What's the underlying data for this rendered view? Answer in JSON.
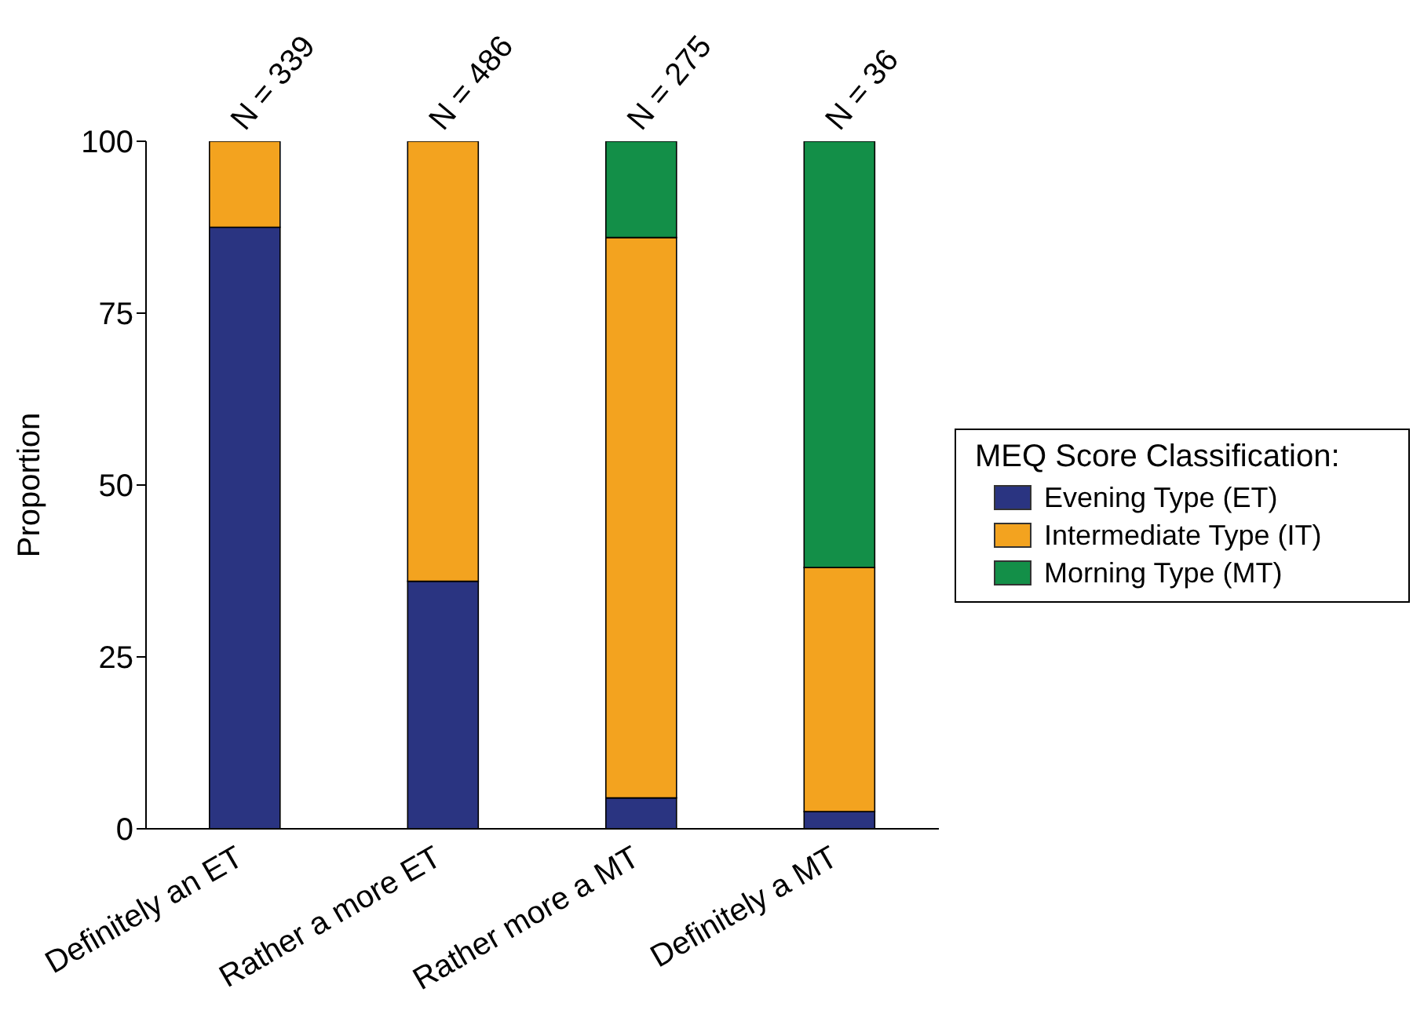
{
  "chart_data": {
    "type": "bar",
    "stacked": true,
    "ylabel": "Proportion",
    "legend_title": "MEQ Score Classification:",
    "legend": "right",
    "grid": false,
    "categories": [
      "Definitely an ET",
      "Rather a more ET",
      "Rather more a MT",
      "Definitely a MT"
    ],
    "series": [
      {
        "name": "Evening Type (ET)",
        "color": "#2a3481",
        "values": [
          87.5,
          36,
          4.5,
          2.5
        ]
      },
      {
        "name": "Intermediate Type (IT)",
        "color": "#f3a31f",
        "values": [
          12.5,
          64,
          81.5,
          35.5
        ]
      },
      {
        "name": "Morning Type (MT)",
        "color": "#138f48",
        "values": [
          0,
          0,
          14,
          62
        ]
      }
    ],
    "ylim": [
      0,
      100
    ],
    "yticks": [
      0,
      25,
      50,
      75,
      100
    ],
    "annotations": [
      {
        "text": "N = 339",
        "x": "Definitely an ET",
        "y": 100
      },
      {
        "text": "N = 486",
        "x": "Rather a more ET",
        "y": 100
      },
      {
        "text": "N = 275",
        "x": "Rather more a MT",
        "y": 100
      },
      {
        "text": "N = 36",
        "x": "Definitely a MT",
        "y": 100
      }
    ]
  }
}
